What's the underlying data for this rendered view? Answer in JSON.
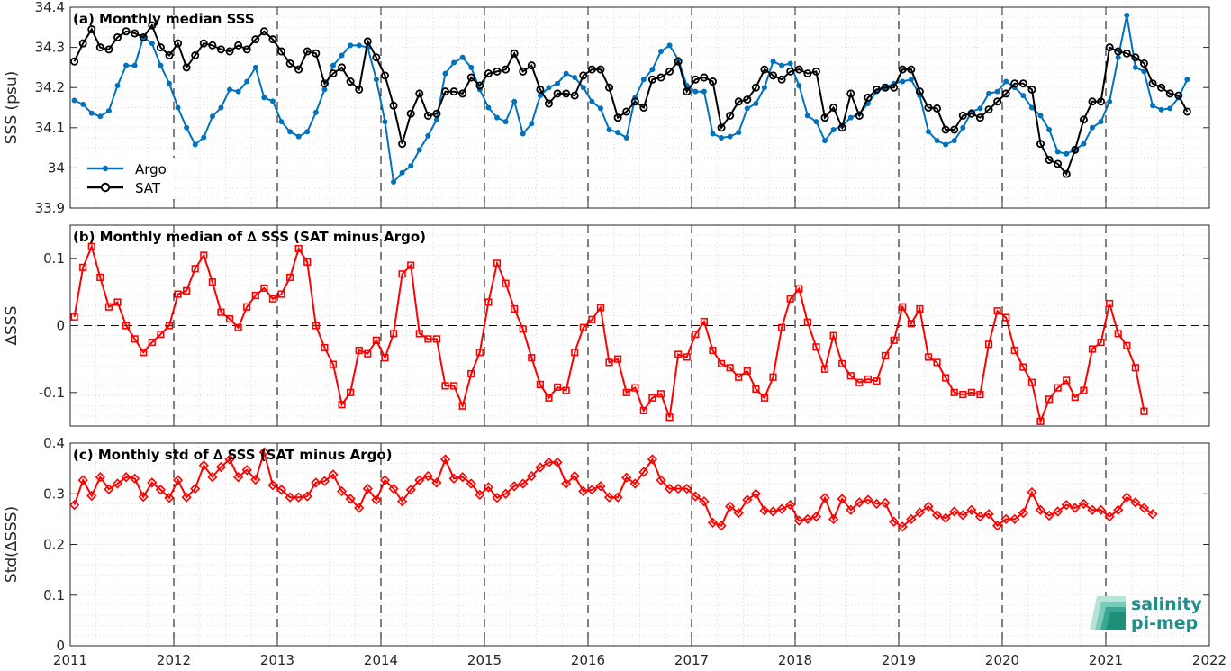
{
  "chart_data": [
    {
      "type": "line",
      "title": "(a) Monthly median SSS",
      "ylabel": "SSS (psu)",
      "xlim": [
        2011,
        2022
      ],
      "ylim": [
        33.9,
        34.4
      ],
      "yticks": [
        33.9,
        34,
        34.1,
        34.2,
        34.3,
        34.4
      ],
      "ytick_labels": [
        "33.9",
        "34",
        "34.1",
        "34.2",
        "34.3",
        "34.4"
      ],
      "legend": "bottom-left",
      "grid": true,
      "x_start": 2011.04,
      "x_step": 0.0833,
      "series": [
        {
          "name": "Argo",
          "color": "#0072BD",
          "marker": "dot",
          "values": [
            34.168,
            34.158,
            34.136,
            34.128,
            34.142,
            34.205,
            34.255,
            34.255,
            34.325,
            34.31,
            34.255,
            34.21,
            34.15,
            34.1,
            34.058,
            34.076,
            34.128,
            34.15,
            34.195,
            34.19,
            34.215,
            34.25,
            34.175,
            34.166,
            34.115,
            34.09,
            34.078,
            34.09,
            34.138,
            34.195,
            34.255,
            34.28,
            34.305,
            34.305,
            34.3,
            34.22,
            34.115,
            33.965,
            33.988,
            34.005,
            34.045,
            34.08,
            34.12,
            34.235,
            34.262,
            34.275,
            34.25,
            34.195,
            34.15,
            34.125,
            34.115,
            34.165,
            34.085,
            34.11,
            34.18,
            34.2,
            34.21,
            34.235,
            34.225,
            34.2,
            34.165,
            34.148,
            34.095,
            34.088,
            34.075,
            34.175,
            34.22,
            34.245,
            34.29,
            34.305,
            34.27,
            34.205,
            34.19,
            34.19,
            34.085,
            34.075,
            34.078,
            34.088,
            34.148,
            34.16,
            34.2,
            34.265,
            34.255,
            34.26,
            34.205,
            34.13,
            34.115,
            34.068,
            34.095,
            34.105,
            34.125,
            34.135,
            34.16,
            34.19,
            34.2,
            34.21,
            34.215,
            34.22,
            34.18,
            34.09,
            34.068,
            34.058,
            34.068,
            34.1,
            34.14,
            34.148,
            34.185,
            34.19,
            34.215,
            34.2,
            34.18,
            34.15,
            34.13,
            34.095,
            34.04,
            34.035,
            34.045,
            34.06,
            34.1,
            34.115,
            34.165,
            34.275,
            34.38,
            34.25,
            34.24,
            34.155,
            34.145,
            34.148,
            34.175,
            34.22
          ]
        },
        {
          "name": "SAT",
          "color": "#000000",
          "marker": "circle",
          "values": [
            34.265,
            34.31,
            34.345,
            34.3,
            34.295,
            34.325,
            34.34,
            34.335,
            34.325,
            34.355,
            34.3,
            34.28,
            34.31,
            34.25,
            34.28,
            34.31,
            34.305,
            34.295,
            34.29,
            34.305,
            34.295,
            34.32,
            34.34,
            34.32,
            34.29,
            34.26,
            34.245,
            34.29,
            34.285,
            34.21,
            34.235,
            34.25,
            34.215,
            34.195,
            34.315,
            34.275,
            34.23,
            34.155,
            34.06,
            34.135,
            34.185,
            34.13,
            34.135,
            34.19,
            34.19,
            34.185,
            34.225,
            34.205,
            34.235,
            34.24,
            34.245,
            34.285,
            34.24,
            34.255,
            34.195,
            34.16,
            34.185,
            34.185,
            34.18,
            34.23,
            34.245,
            34.245,
            34.2,
            34.125,
            34.14,
            34.165,
            34.15,
            34.22,
            34.225,
            34.24,
            34.265,
            34.19,
            34.22,
            34.225,
            34.215,
            34.1,
            34.13,
            34.165,
            34.17,
            34.2,
            34.245,
            34.23,
            34.22,
            34.24,
            34.245,
            34.235,
            34.24,
            34.125,
            34.15,
            34.1,
            34.185,
            34.13,
            34.175,
            34.195,
            34.2,
            34.2,
            34.245,
            34.245,
            34.19,
            34.15,
            34.148,
            34.095,
            34.095,
            34.13,
            34.135,
            34.125,
            34.145,
            34.165,
            34.185,
            34.21,
            34.21,
            34.195,
            34.06,
            34.02,
            34.01,
            33.985,
            34.045,
            34.12,
            34.165,
            34.165,
            34.3,
            34.29,
            34.285,
            34.275,
            34.26,
            34.21,
            34.2,
            34.185,
            34.18,
            34.14
          ]
        }
      ]
    },
    {
      "type": "line",
      "title": "(b) Monthly median of ∆ SSS (SAT minus Argo)",
      "ylabel": "∆SSS",
      "xlim": [
        2011,
        2022
      ],
      "ylim": [
        -0.15,
        0.15
      ],
      "yticks": [
        -0.1,
        0,
        0.1
      ],
      "ytick_labels": [
        "-0.1",
        "0",
        "0.1"
      ],
      "grid": true,
      "x_start": 2011.04,
      "x_step": 0.0833,
      "series": [
        {
          "name": "",
          "color": "#FF0000",
          "marker": "square",
          "values": [
            0.013,
            0.087,
            0.118,
            0.072,
            0.028,
            0.035,
            0.0,
            -0.02,
            -0.04,
            -0.025,
            -0.013,
            0.0,
            0.047,
            0.052,
            0.085,
            0.105,
            0.065,
            0.02,
            0.01,
            -0.003,
            0.028,
            0.045,
            0.056,
            0.04,
            0.047,
            0.072,
            0.115,
            0.095,
            0.0,
            -0.033,
            -0.058,
            -0.118,
            -0.1,
            -0.037,
            -0.042,
            -0.022,
            -0.048,
            -0.012,
            0.077,
            0.09,
            -0.012,
            -0.02,
            -0.02,
            -0.09,
            -0.09,
            -0.12,
            -0.072,
            -0.04,
            0.035,
            0.093,
            0.063,
            0.025,
            -0.005,
            -0.048,
            -0.088,
            -0.108,
            -0.092,
            -0.097,
            -0.04,
            -0.003,
            0.009,
            0.027,
            -0.055,
            -0.05,
            -0.1,
            -0.093,
            -0.127,
            -0.108,
            -0.102,
            -0.137,
            -0.043,
            -0.047,
            -0.013,
            0.006,
            -0.037,
            -0.057,
            -0.063,
            -0.077,
            -0.068,
            -0.095,
            -0.108,
            -0.077,
            -0.003,
            0.04,
            0.055,
            0.005,
            -0.032,
            -0.065,
            -0.015,
            -0.057,
            -0.075,
            -0.085,
            -0.08,
            -0.083,
            -0.045,
            -0.022,
            0.028,
            0.003,
            0.025,
            -0.047,
            -0.055,
            -0.078,
            -0.1,
            -0.103,
            -0.1,
            -0.103,
            -0.028,
            0.022,
            0.012,
            -0.037,
            -0.062,
            -0.085,
            -0.143,
            -0.11,
            -0.093,
            -0.082,
            -0.107,
            -0.097,
            -0.035,
            -0.025,
            0.033,
            -0.012,
            -0.03,
            -0.063,
            -0.128
          ]
        }
      ]
    },
    {
      "type": "line",
      "title": "(c) Monthly std of ∆ SSS (SAT minus Argo)",
      "ylabel": "Std(∆SSS)",
      "xlim": [
        2011,
        2022
      ],
      "ylim": [
        0,
        0.4
      ],
      "yticks": [
        0,
        0.1,
        0.2,
        0.3,
        0.4
      ],
      "ytick_labels": [
        "0",
        "0.1",
        "0.2",
        "0.3",
        "0.4"
      ],
      "xticks": [
        2011,
        2012,
        2013,
        2014,
        2015,
        2016,
        2017,
        2018,
        2019,
        2020,
        2021,
        2022
      ],
      "xtick_labels": [
        "2011",
        "2012",
        "2013",
        "2014",
        "2015",
        "2016",
        "2017",
        "2018",
        "2019",
        "2020",
        "2021",
        "2022"
      ],
      "grid": true,
      "x_start": 2011.04,
      "x_step": 0.0833,
      "series": [
        {
          "name": "",
          "color": "#FF0000",
          "marker": "diamond",
          "values": [
            0.278,
            0.327,
            0.296,
            0.333,
            0.309,
            0.32,
            0.333,
            0.33,
            0.294,
            0.322,
            0.308,
            0.292,
            0.327,
            0.293,
            0.31,
            0.356,
            0.333,
            0.353,
            0.368,
            0.333,
            0.347,
            0.328,
            0.382,
            0.317,
            0.308,
            0.293,
            0.293,
            0.295,
            0.322,
            0.325,
            0.338,
            0.305,
            0.29,
            0.272,
            0.31,
            0.288,
            0.327,
            0.31,
            0.285,
            0.308,
            0.327,
            0.335,
            0.322,
            0.368,
            0.33,
            0.333,
            0.32,
            0.298,
            0.313,
            0.292,
            0.3,
            0.315,
            0.32,
            0.335,
            0.352,
            0.362,
            0.362,
            0.32,
            0.335,
            0.305,
            0.308,
            0.315,
            0.293,
            0.293,
            0.332,
            0.32,
            0.343,
            0.368,
            0.327,
            0.31,
            0.31,
            0.31,
            0.295,
            0.285,
            0.243,
            0.237,
            0.275,
            0.262,
            0.288,
            0.3,
            0.267,
            0.265,
            0.27,
            0.278,
            0.247,
            0.25,
            0.255,
            0.292,
            0.25,
            0.29,
            0.268,
            0.283,
            0.288,
            0.28,
            0.282,
            0.245,
            0.235,
            0.25,
            0.263,
            0.275,
            0.258,
            0.252,
            0.265,
            0.258,
            0.268,
            0.255,
            0.26,
            0.237,
            0.25,
            0.25,
            0.262,
            0.303,
            0.268,
            0.257,
            0.265,
            0.278,
            0.272,
            0.28,
            0.268,
            0.268,
            0.255,
            0.268,
            0.293,
            0.283,
            0.272,
            0.26
          ]
        }
      ]
    }
  ],
  "legend_entries": [
    "Argo",
    "SAT"
  ],
  "logo": {
    "line1": "salinity",
    "line2": "pi-mep"
  }
}
